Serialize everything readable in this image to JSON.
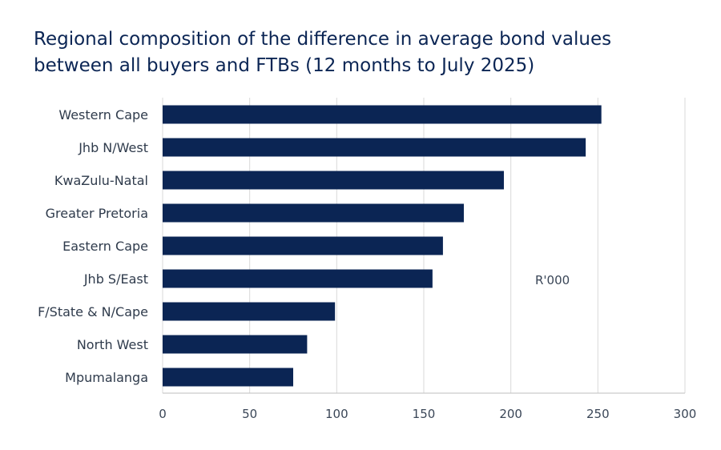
{
  "chart_data": {
    "type": "bar",
    "orientation": "horizontal",
    "title": "Regional composition of the difference in average bond values between all buyers and FTBs (12 months to July 2025)",
    "unit_label": "R'000",
    "categories": [
      "Western Cape",
      "Jhb N/West",
      "KwaZulu-Natal",
      "Greater Pretoria",
      "Eastern Cape",
      "Jhb S/East",
      "F/State & N/Cape",
      "North West",
      "Mpumalanga"
    ],
    "values": [
      252,
      243,
      196,
      173,
      161,
      155,
      99,
      83,
      75
    ],
    "xlim": [
      0,
      300
    ],
    "xticks": [
      "0",
      "50",
      "100",
      "150",
      "200",
      "250",
      "300"
    ],
    "grid": true,
    "colors": {
      "bar": "#0b2554",
      "grid": "#d9d9d9",
      "title": "#0b2554"
    }
  }
}
